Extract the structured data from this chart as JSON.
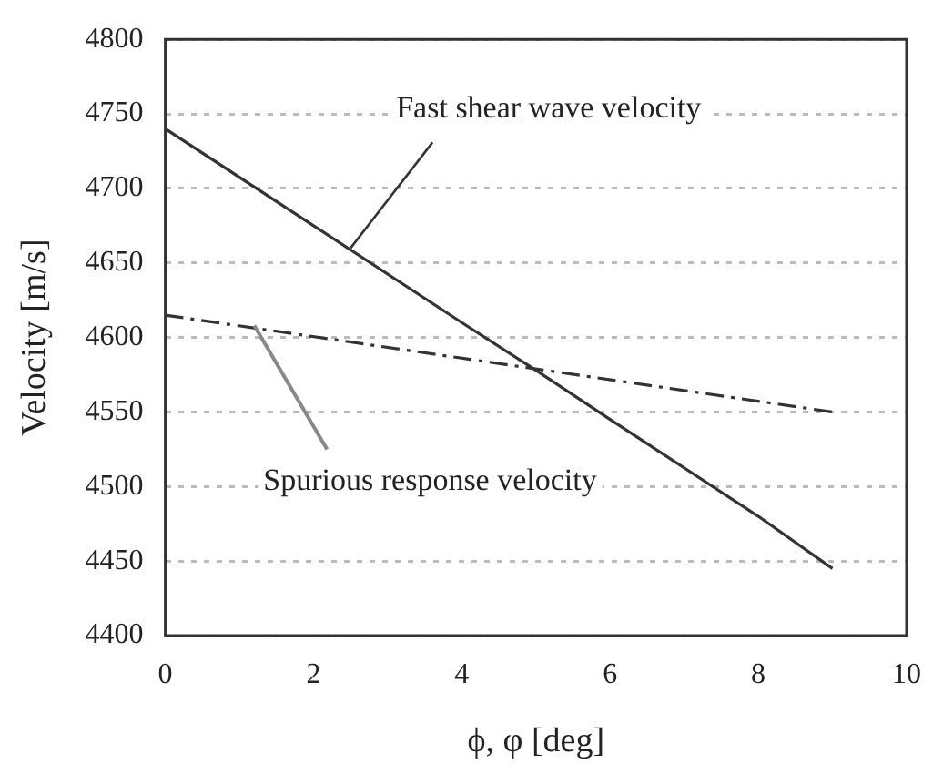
{
  "chart_data": {
    "type": "line",
    "xlabel": "ϕ, φ [deg]",
    "ylabel": "Velocity [m/s]",
    "xlim": [
      0,
      10
    ],
    "xticks": [
      0,
      2,
      4,
      6,
      8,
      10
    ],
    "ylim": [
      4400,
      4800
    ],
    "yticks": [
      4400,
      4450,
      4500,
      4550,
      4600,
      4650,
      4700,
      4750,
      4800
    ],
    "grid": "y",
    "marker": "none",
    "series": [
      {
        "color": "#333333",
        "x": [
          0,
          2,
          4,
          5,
          6,
          8,
          9
        ],
        "values": [
          4740,
          4675,
          4610,
          4578,
          4545,
          4480,
          4445
        ],
        "line_style": "solid"
      },
      {
        "color": "#333333",
        "x": [
          0,
          9
        ],
        "values": [
          4615,
          4550
        ],
        "line_style": "dashdot"
      }
    ],
    "annotations": [
      {
        "text": "Fast shear wave velocity",
        "x": 2.5,
        "y": 4660
      },
      {
        "text": "Spurious response velocity",
        "x": 1.2,
        "y": 4608
      }
    ]
  }
}
